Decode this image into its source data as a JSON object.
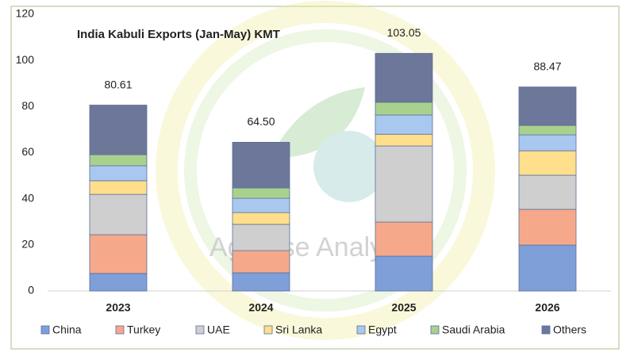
{
  "chart_data": {
    "type": "stacked-bar",
    "title": "India Kabuli Exports (Jan-May) KMT",
    "watermark": "AgPulse Analytica",
    "categories": [
      "2023",
      "2024",
      "2025",
      "2026"
    ],
    "series": [
      {
        "name": "China",
        "color": "#7f9fd9",
        "values": [
          7.6,
          7.9,
          15.1,
          19.9
        ]
      },
      {
        "name": "Turkey",
        "color": "#f5a98a",
        "values": [
          16.8,
          9.6,
          14.8,
          15.5
        ]
      },
      {
        "name": "UAE",
        "color": "#cfcfcf",
        "values": [
          17.5,
          11.4,
          33.0,
          14.8
        ]
      },
      {
        "name": "Sri Lanka",
        "color": "#ffdf8c",
        "values": [
          5.9,
          5.1,
          5.1,
          10.6
        ]
      },
      {
        "name": "Egypt",
        "color": "#a9c8f0",
        "values": [
          6.5,
          6.2,
          8.3,
          6.9
        ]
      },
      {
        "name": "Saudi Arabia",
        "color": "#a9d18e",
        "values": [
          4.8,
          4.5,
          5.5,
          4.1
        ]
      },
      {
        "name": "Others",
        "color": "#6d7799",
        "values": [
          21.51,
          19.8,
          21.25,
          16.67
        ]
      }
    ],
    "totals": {
      "values": [
        80.61,
        64.5,
        103.05,
        88.47
      ],
      "value_labels": [
        "80.61",
        "64.50",
        "103.05",
        "88.47"
      ]
    },
    "ylim": [
      0,
      120
    ],
    "yticks": [
      0,
      20,
      40,
      60,
      80,
      100,
      120
    ]
  }
}
